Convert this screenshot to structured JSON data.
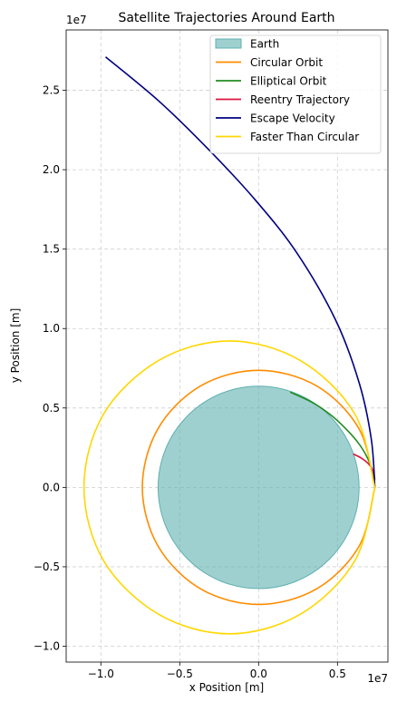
{
  "chart_data": {
    "type": "line",
    "title": "Satellite Trajectories Around Earth",
    "xlabel": "x Position [m]",
    "ylabel": "y Position [m]",
    "x_offset_label": "1e7",
    "y_offset_label": "1e7",
    "xlim": [
      -12200000.0,
      8200000.0
    ],
    "ylim": [
      -11000000.0,
      28800000.0
    ],
    "x_ticks": [
      {
        "value": -10000000.0,
        "label": "−1.0"
      },
      {
        "value": -5000000.0,
        "label": "−0.5"
      },
      {
        "value": 0.0,
        "label": "0.0"
      },
      {
        "value": 5000000.0,
        "label": "0.5"
      }
    ],
    "y_ticks": [
      {
        "value": -10000000.0,
        "label": "−1.0"
      },
      {
        "value": -5000000.0,
        "label": "−0.5"
      },
      {
        "value": 0.0,
        "label": "0.0"
      },
      {
        "value": 5000000.0,
        "label": "0.5"
      },
      {
        "value": 10000000.0,
        "label": "1.0"
      },
      {
        "value": 15000000.0,
        "label": "1.5"
      },
      {
        "value": 20000000.0,
        "label": "2.0"
      },
      {
        "value": 25000000.0,
        "label": "2.5"
      }
    ],
    "grid": true,
    "legend_position": "top-right",
    "earth": {
      "name": "Earth",
      "center": [
        0,
        0
      ],
      "radius": 6371000.0,
      "color": "#5fb0b0"
    },
    "series": [
      {
        "name": "Circular Orbit",
        "color": "#ff8c00",
        "x": [
          7371000,
          6370000,
          3685500,
          0,
          -3685500,
          -6383500,
          -7371000,
          -6383500,
          -3685500,
          0,
          3685500,
          6383500,
          7371000
        ],
        "y": [
          0,
          3685500,
          6383500,
          7371000,
          6383500,
          3685500,
          0,
          -3685500,
          -6383500,
          -7371000,
          -6383500,
          -3685500,
          0
        ]
      },
      {
        "name": "Elliptical Orbit",
        "color": "#228b22",
        "x": [
          7371000,
          7250000,
          6880000,
          6280000,
          5470000,
          4520000,
          3400000,
          2000000
        ],
        "y": [
          0,
          900000,
          1900000,
          2850000,
          3750000,
          4600000,
          5350000,
          6000000
        ]
      },
      {
        "name": "Reentry Trajectory",
        "color": "#dc143c",
        "x": [
          7371000,
          7250000,
          6950000,
          6500000,
          6000000
        ],
        "y": [
          500000,
          1050000,
          1500000,
          1850000,
          2100000
        ]
      },
      {
        "name": "Escape Velocity",
        "color": "#000080",
        "x": [
          7371000,
          7150000,
          6400000,
          4900000,
          2400000,
          -300000,
          -3200000,
          -6300000,
          -9700000
        ],
        "y": [
          0,
          3000000,
          6500000,
          10500000,
          14800000,
          18200000,
          21300000,
          24300000,
          27100000
        ]
      },
      {
        "name": "Faster Than Circular",
        "color": "#ffd700",
        "x": [
          7371000,
          6106000,
          2650000,
          -1850000,
          -6350000,
          -9830000,
          -11070000,
          -9830000,
          -6350000,
          -1850000,
          2650000,
          6106000,
          7371000
        ],
        "y": [
          0,
          4610000,
          7985000,
          9220000,
          7985000,
          4610000,
          0,
          -4610000,
          -7985000,
          -9220000,
          -7985000,
          -4610000,
          0
        ]
      }
    ]
  }
}
